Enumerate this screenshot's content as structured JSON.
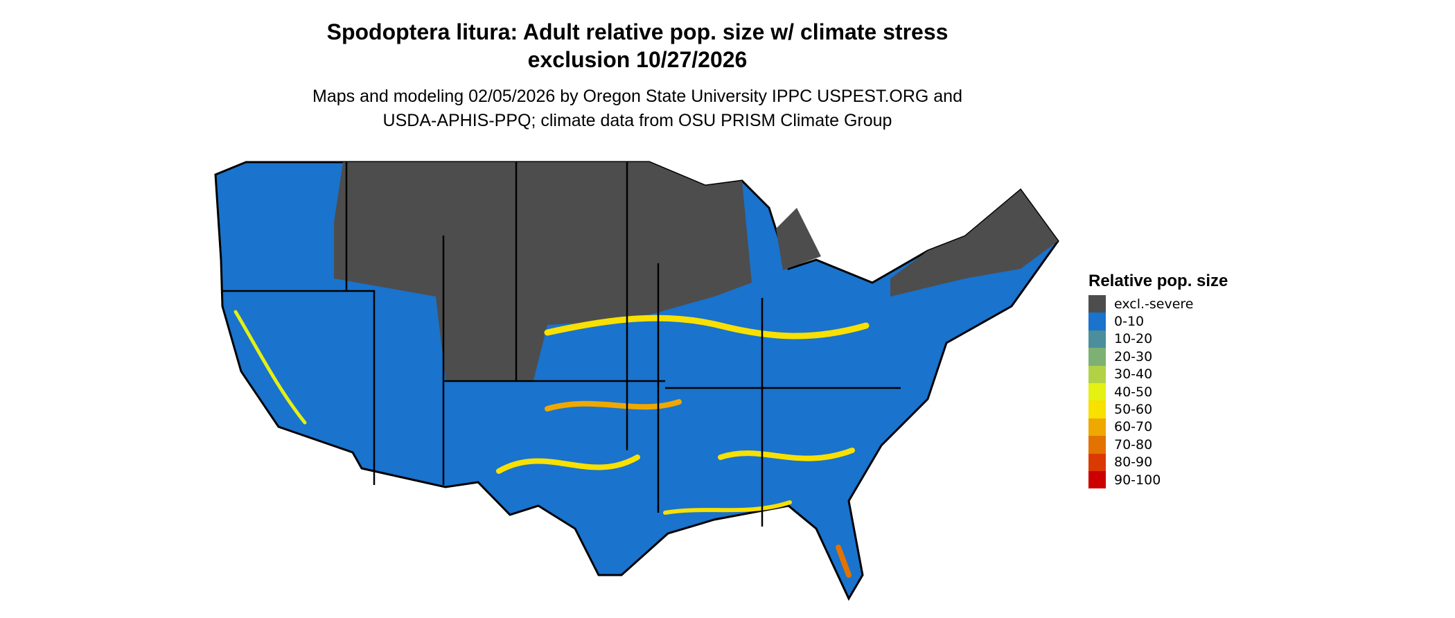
{
  "title": {
    "line1": "Spodoptera litura: Adult relative pop. size w/ climate stress",
    "line2": "exclusion 10/27/2026"
  },
  "subtitle": {
    "line1": "Maps and modeling 02/05/2026 by Oregon State University IPPC USPEST.ORG and",
    "line2": "USDA-APHIS-PPQ; climate data from OSU PRISM Climate Group"
  },
  "map": {
    "region": "Contiguous United States",
    "dominant_class": "0-10",
    "excluded_region_color": "#4d4d4d"
  },
  "legend": {
    "title": "Relative pop. size",
    "items": [
      {
        "label": "excl.-severe",
        "color": "#4d4d4d"
      },
      {
        "label": "0-10",
        "color": "#1a73cc"
      },
      {
        "label": "10-20",
        "color": "#4a8f9b"
      },
      {
        "label": "20-30",
        "color": "#7db073"
      },
      {
        "label": "30-40",
        "color": "#b2d145"
      },
      {
        "label": "40-50",
        "color": "#e5f013"
      },
      {
        "label": "50-60",
        "color": "#f8e000"
      },
      {
        "label": "60-70",
        "color": "#eea800"
      },
      {
        "label": "70-80",
        "color": "#e37200"
      },
      {
        "label": "80-90",
        "color": "#da3a00"
      },
      {
        "label": "90-100",
        "color": "#cc0000"
      }
    ]
  }
}
